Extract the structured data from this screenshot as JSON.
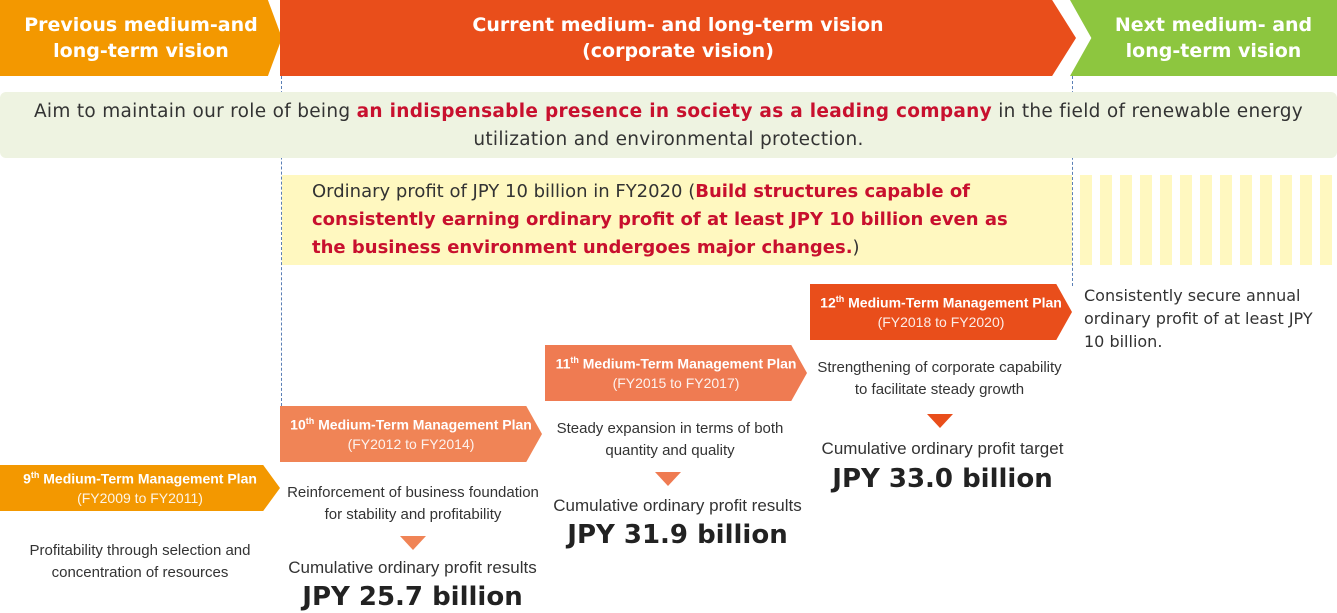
{
  "phases": [
    {
      "lines": [
        "Previous medium-and",
        "long-term vision"
      ]
    },
    {
      "lines": [
        "Current medium- and long-term vision",
        "(corporate vision)"
      ]
    },
    {
      "lines": [
        "Next medium- and",
        "long-term vision"
      ]
    }
  ],
  "aim": {
    "before": "Aim to maintain our role of being ",
    "highlight": "an indispensable presence in society as a leading company",
    "after": " in the field of renewable energy utilization and environmental protection."
  },
  "target": {
    "before": "Ordinary profit of JPY 10 billion in FY2020 (",
    "highlight": "Build structures capable of consistently earning ordinary profit of at least JPY 10 billion even as the business environment undergoes major changes.",
    "after": ")"
  },
  "next_goal": "Consistently secure annual ordinary profit of at least JPY 10 billion.",
  "plans": [
    {
      "ordinal": "9",
      "suffix": "th",
      "name": "Medium-Term Management Plan",
      "period": "(FY2009 to FY2011)",
      "theme": "Profitability through selection and concentration of resources"
    },
    {
      "ordinal": "10",
      "suffix": "th",
      "name": "Medium-Term Management Plan",
      "period": "(FY2012 to FY2014)",
      "theme": "Reinforcement of business foundation for stability and profitability",
      "result_label": "Cumulative ordinary profit results",
      "result_value": "JPY 25.7 billion"
    },
    {
      "ordinal": "11",
      "suffix": "th",
      "name": "Medium-Term Management Plan",
      "period": "(FY2015 to FY2017)",
      "theme": "Steady expansion in terms of both quantity and quality",
      "result_label": "Cumulative ordinary profit results",
      "result_value": "JPY 31.9 billion"
    },
    {
      "ordinal": "12",
      "suffix": "th",
      "name": "Medium-Term Management Plan",
      "period": "(FY2018 to FY2020)",
      "theme": "Strengthening of corporate capability to facilitate steady growth",
      "result_label": "Cumulative ordinary profit target",
      "result_value": "JPY 33.0 billion"
    }
  ]
}
